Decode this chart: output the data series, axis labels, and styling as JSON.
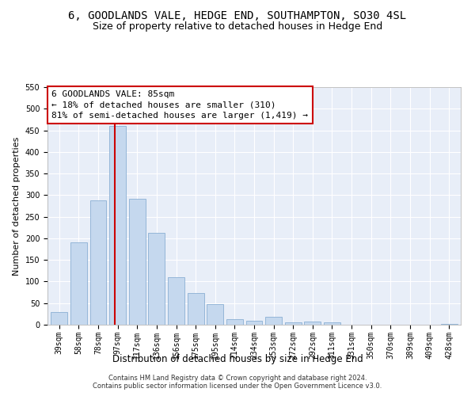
{
  "title": "6, GOODLANDS VALE, HEDGE END, SOUTHAMPTON, SO30 4SL",
  "subtitle": "Size of property relative to detached houses in Hedge End",
  "xlabel": "Distribution of detached houses by size in Hedge End",
  "ylabel": "Number of detached properties",
  "categories": [
    "39sqm",
    "58sqm",
    "78sqm",
    "97sqm",
    "117sqm",
    "136sqm",
    "156sqm",
    "175sqm",
    "195sqm",
    "214sqm",
    "234sqm",
    "253sqm",
    "272sqm",
    "292sqm",
    "311sqm",
    "331sqm",
    "350sqm",
    "370sqm",
    "389sqm",
    "409sqm",
    "428sqm"
  ],
  "values": [
    30,
    190,
    287,
    460,
    291,
    212,
    110,
    73,
    47,
    12,
    10,
    19,
    6,
    7,
    5,
    0,
    0,
    0,
    0,
    0,
    2
  ],
  "bar_color": "#c5d8ee",
  "bar_edge_color": "#8aafd4",
  "vline_color": "#cc0000",
  "annotation_text": "6 GOODLANDS VALE: 85sqm\n← 18% of detached houses are smaller (310)\n81% of semi-detached houses are larger (1,419) →",
  "annotation_box_color": "#ffffff",
  "annotation_box_edge": "#cc0000",
  "ylim": [
    0,
    550
  ],
  "yticks": [
    0,
    50,
    100,
    150,
    200,
    250,
    300,
    350,
    400,
    450,
    500,
    550
  ],
  "footer1": "Contains HM Land Registry data © Crown copyright and database right 2024.",
  "footer2": "Contains public sector information licensed under the Open Government Licence v3.0.",
  "title_fontsize": 10,
  "subtitle_fontsize": 9,
  "tick_fontsize": 7,
  "ylabel_fontsize": 8,
  "xlabel_fontsize": 8.5,
  "annotation_fontsize": 8,
  "footer_fontsize": 6,
  "bg_color": "#ffffff",
  "plot_bg_color": "#e8eef8",
  "grid_color": "#ffffff"
}
